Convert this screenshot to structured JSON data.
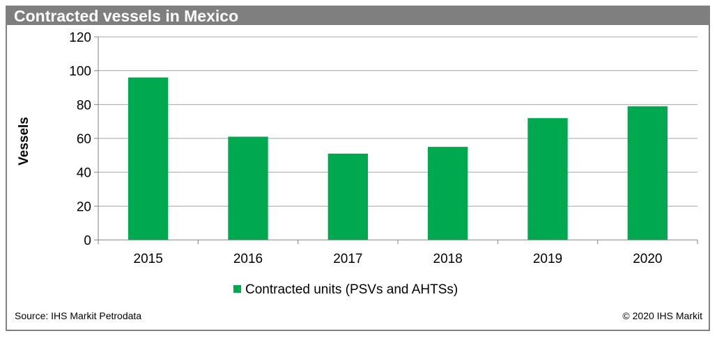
{
  "header": {
    "title": "Contracted vessels in Mexico"
  },
  "footer": {
    "source": "Source: IHS Markit Petrodata",
    "copyright": "© 2020 IHS Markit"
  },
  "colors": {
    "bar": "#00a94f",
    "title_bg": "#7f7f7f",
    "grid": "#a6a6a6"
  },
  "chart_data": {
    "type": "bar",
    "title": "Contracted vessels in Mexico",
    "categories": [
      "2015",
      "2016",
      "2017",
      "2018",
      "2019",
      "2020"
    ],
    "series": [
      {
        "name": "Contracted units (PSVs and AHTSs)",
        "values": [
          96,
          61,
          51,
          55,
          72,
          79
        ]
      }
    ],
    "xlabel": "",
    "ylabel": "Vessels",
    "ylim": [
      0,
      120
    ],
    "yticks": [
      0,
      20,
      40,
      60,
      80,
      100,
      120
    ],
    "grid": true,
    "legend": "bottom-center"
  }
}
